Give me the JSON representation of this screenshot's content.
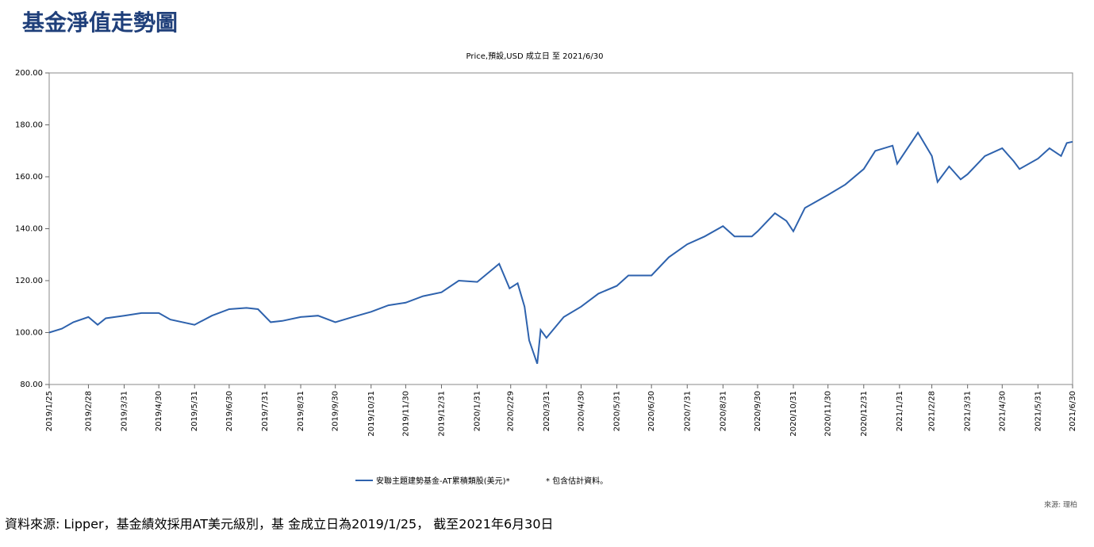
{
  "page_title": "基金淨值走勢圖",
  "chart_data": {
    "type": "line",
    "title": "Price,預設,USD 成立日 至 2021/6/30",
    "x": [
      "2019/1/25",
      "2019/2/5",
      "2019/2/15",
      "2019/2/28",
      "2019/3/8",
      "2019/3/15",
      "2019/3/31",
      "2019/4/15",
      "2019/4/30",
      "2019/5/10",
      "2019/5/31",
      "2019/6/15",
      "2019/6/30",
      "2019/7/15",
      "2019/7/25",
      "2019/8/5",
      "2019/8/15",
      "2019/8/31",
      "2019/9/15",
      "2019/9/30",
      "2019/10/15",
      "2019/10/31",
      "2019/11/15",
      "2019/11/30",
      "2019/12/15",
      "2019/12/31",
      "2020/1/15",
      "2020/1/31",
      "2020/2/19",
      "2020/2/28",
      "2020/3/6",
      "2020/3/12",
      "2020/3/16",
      "2020/3/23",
      "2020/3/26",
      "2020/3/31",
      "2020/4/15",
      "2020/4/30",
      "2020/5/15",
      "2020/5/31",
      "2020/6/10",
      "2020/6/30",
      "2020/7/15",
      "2020/7/31",
      "2020/8/15",
      "2020/8/31",
      "2020/9/10",
      "2020/9/25",
      "2020/9/30",
      "2020/10/15",
      "2020/10/25",
      "2020/10/31",
      "2020/11/10",
      "2020/11/30",
      "2020/12/15",
      "2020/12/31",
      "2021/1/10",
      "2021/1/25",
      "2021/1/29",
      "2021/2/16",
      "2021/2/28",
      "2021/3/5",
      "2021/3/15",
      "2021/3/25",
      "2021/3/31",
      "2021/4/15",
      "2021/4/30",
      "2021/5/10",
      "2021/5/15",
      "2021/5/31",
      "2021/6/10",
      "2021/6/20",
      "2021/6/25",
      "2021/6/30"
    ],
    "series": [
      {
        "name": "安聯主題建勢基金-AT累積類股(美元)*",
        "color": "#2e62ad",
        "values": [
          100,
          101.5,
          104,
          106,
          103,
          105.5,
          106.5,
          107.5,
          107.5,
          105,
          103,
          106.5,
          109,
          109.5,
          109,
          104,
          104.5,
          106,
          106.5,
          104,
          106,
          108,
          110.5,
          111.5,
          114,
          115.5,
          120,
          119.5,
          126.5,
          117,
          119,
          110,
          97,
          88,
          101,
          98,
          106,
          110,
          115,
          118,
          122,
          122,
          129,
          134,
          137,
          141,
          137,
          137,
          139,
          146,
          143,
          139,
          148,
          153,
          157,
          163,
          170,
          172,
          165,
          177,
          168,
          158,
          164,
          159,
          161,
          168,
          171,
          166,
          163,
          167,
          171,
          168,
          173,
          173.5
        ]
      }
    ],
    "xlim": [
      "2019/1/25",
      "2021/6/30"
    ],
    "xticks": [
      "2019/1/25",
      "2019/2/28",
      "2019/3/31",
      "2019/4/30",
      "2019/5/31",
      "2019/6/30",
      "2019/7/31",
      "2019/8/31",
      "2019/9/30",
      "2019/10/31",
      "2019/11/30",
      "2019/12/31",
      "2020/1/31",
      "2020/2/29",
      "2020/3/31",
      "2020/4/30",
      "2020/5/31",
      "2020/6/30",
      "2020/7/31",
      "2020/8/31",
      "2020/9/30",
      "2020/10/31",
      "2020/11/30",
      "2020/12/31",
      "2021/1/31",
      "2021/2/28",
      "2021/3/31",
      "2021/4/30",
      "2021/5/31",
      "2021/6/30"
    ],
    "ylim": [
      80,
      200
    ],
    "yticks": [
      {
        "value": 80,
        "label": "80.00"
      },
      {
        "value": 100,
        "label": "100.00"
      },
      {
        "value": 120,
        "label": "120.00"
      },
      {
        "value": 140,
        "label": "140.00"
      },
      {
        "value": 160,
        "label": "160.00"
      },
      {
        "value": 180,
        "label": "180.00"
      },
      {
        "value": 200,
        "label": "200.00"
      }
    ],
    "annotation": "* 包含估計資料。",
    "source": "來源: 理柏"
  },
  "footer": "資料來源: Lipper，基金績效採用AT美元級別，基 金成立日為2019/1/25， 截至2021年6月30日"
}
